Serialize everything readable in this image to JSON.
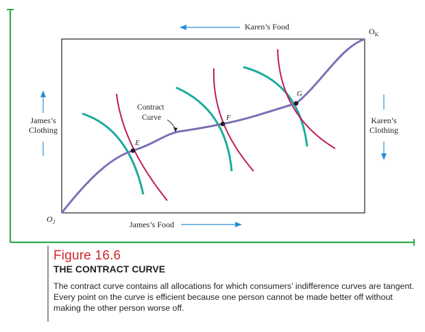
{
  "colors": {
    "frame_green": "#2fa84f",
    "blue_arrow": "#2a8fd4",
    "contract_curve": "#7b6fb5",
    "curve_teal": "#1eaaa0",
    "curve_magenta": "#c2185b",
    "caption_red": "#d2232a"
  },
  "diagram": {
    "origin_james": "O",
    "origin_james_sub": "J",
    "origin_karen": "O",
    "origin_karen_sub": "K",
    "karens_food": "Karen’s Food",
    "james_food": "James’s Food",
    "james_clothing_line1": "James’s",
    "james_clothing_line2": "Clothing",
    "karen_clothing_line1": "Karen’s",
    "karen_clothing_line2": "Clothing",
    "contract_curve_line1": "Contract",
    "contract_curve_line2": "Curve",
    "point_e": "E",
    "point_f": "F",
    "point_g": "G"
  },
  "caption": {
    "figure_word": "Figure",
    "figure_number": "16.6",
    "title": "THE CONTRACT CURVE",
    "text": "The contract curve contains all allocations for which consumers’ indifference curves are tangent. Every point on the curve is efficient because one person cannot be made better off without making the other person worse off."
  }
}
